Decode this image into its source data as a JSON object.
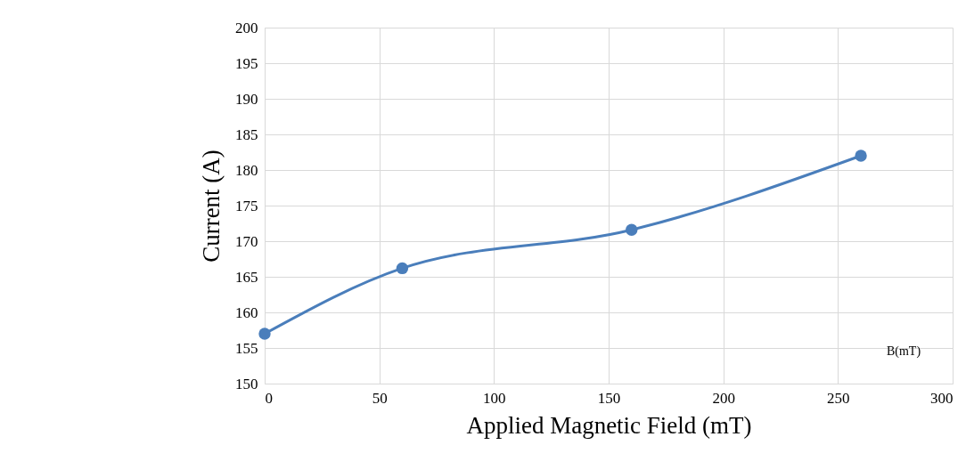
{
  "chart_data": {
    "type": "line",
    "xlabel": "Applied Magnetic Field (mT)",
    "ylabel": "Current (A)",
    "annotations": [
      "B(mT)"
    ],
    "x": [
      0,
      60,
      160,
      260
    ],
    "series": [
      {
        "color": "#4a7ebb",
        "values": [
          157,
          166.2,
          171.6,
          182
        ]
      }
    ],
    "xlim": [
      0,
      300
    ],
    "xticks": [
      0,
      50,
      100,
      150,
      200,
      250,
      300
    ],
    "ylim": [
      150,
      200
    ],
    "yticks": [
      150,
      155,
      160,
      165,
      170,
      175,
      180,
      185,
      190,
      195,
      200
    ],
    "grid": true,
    "marker": "circle",
    "line_style": "solid"
  }
}
